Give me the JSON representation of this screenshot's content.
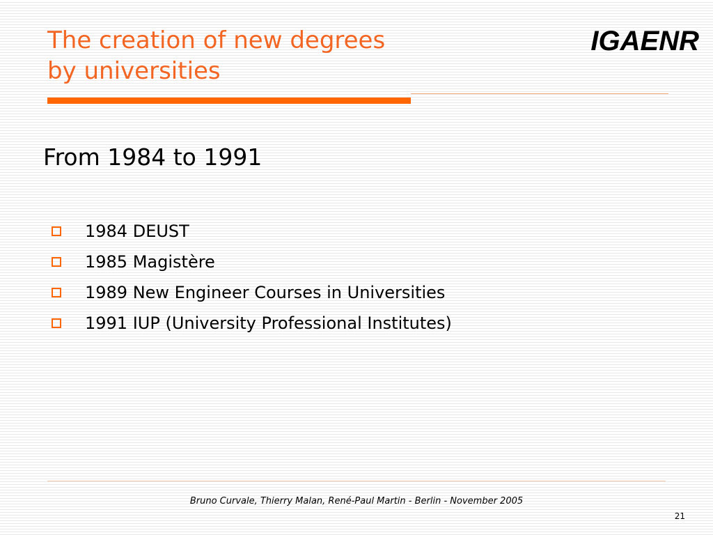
{
  "header": {
    "title_lines": [
      "The creation of new degrees",
      "by universities"
    ],
    "logo": "IGAENR"
  },
  "content": {
    "heading": "From 1984 to 1991",
    "bullets": [
      "1984 DEUST",
      "1985 Magistère",
      "1989 New Engineer Courses in Universities",
      "1991 IUP (University Professional Institutes)"
    ]
  },
  "footer": {
    "credit": "Bruno Curvale, Thierry Malan, René-Paul Martin - Berlin - November 2005",
    "page_number": "21"
  },
  "colors": {
    "accent": "#ff6600",
    "title": "#f26522"
  }
}
